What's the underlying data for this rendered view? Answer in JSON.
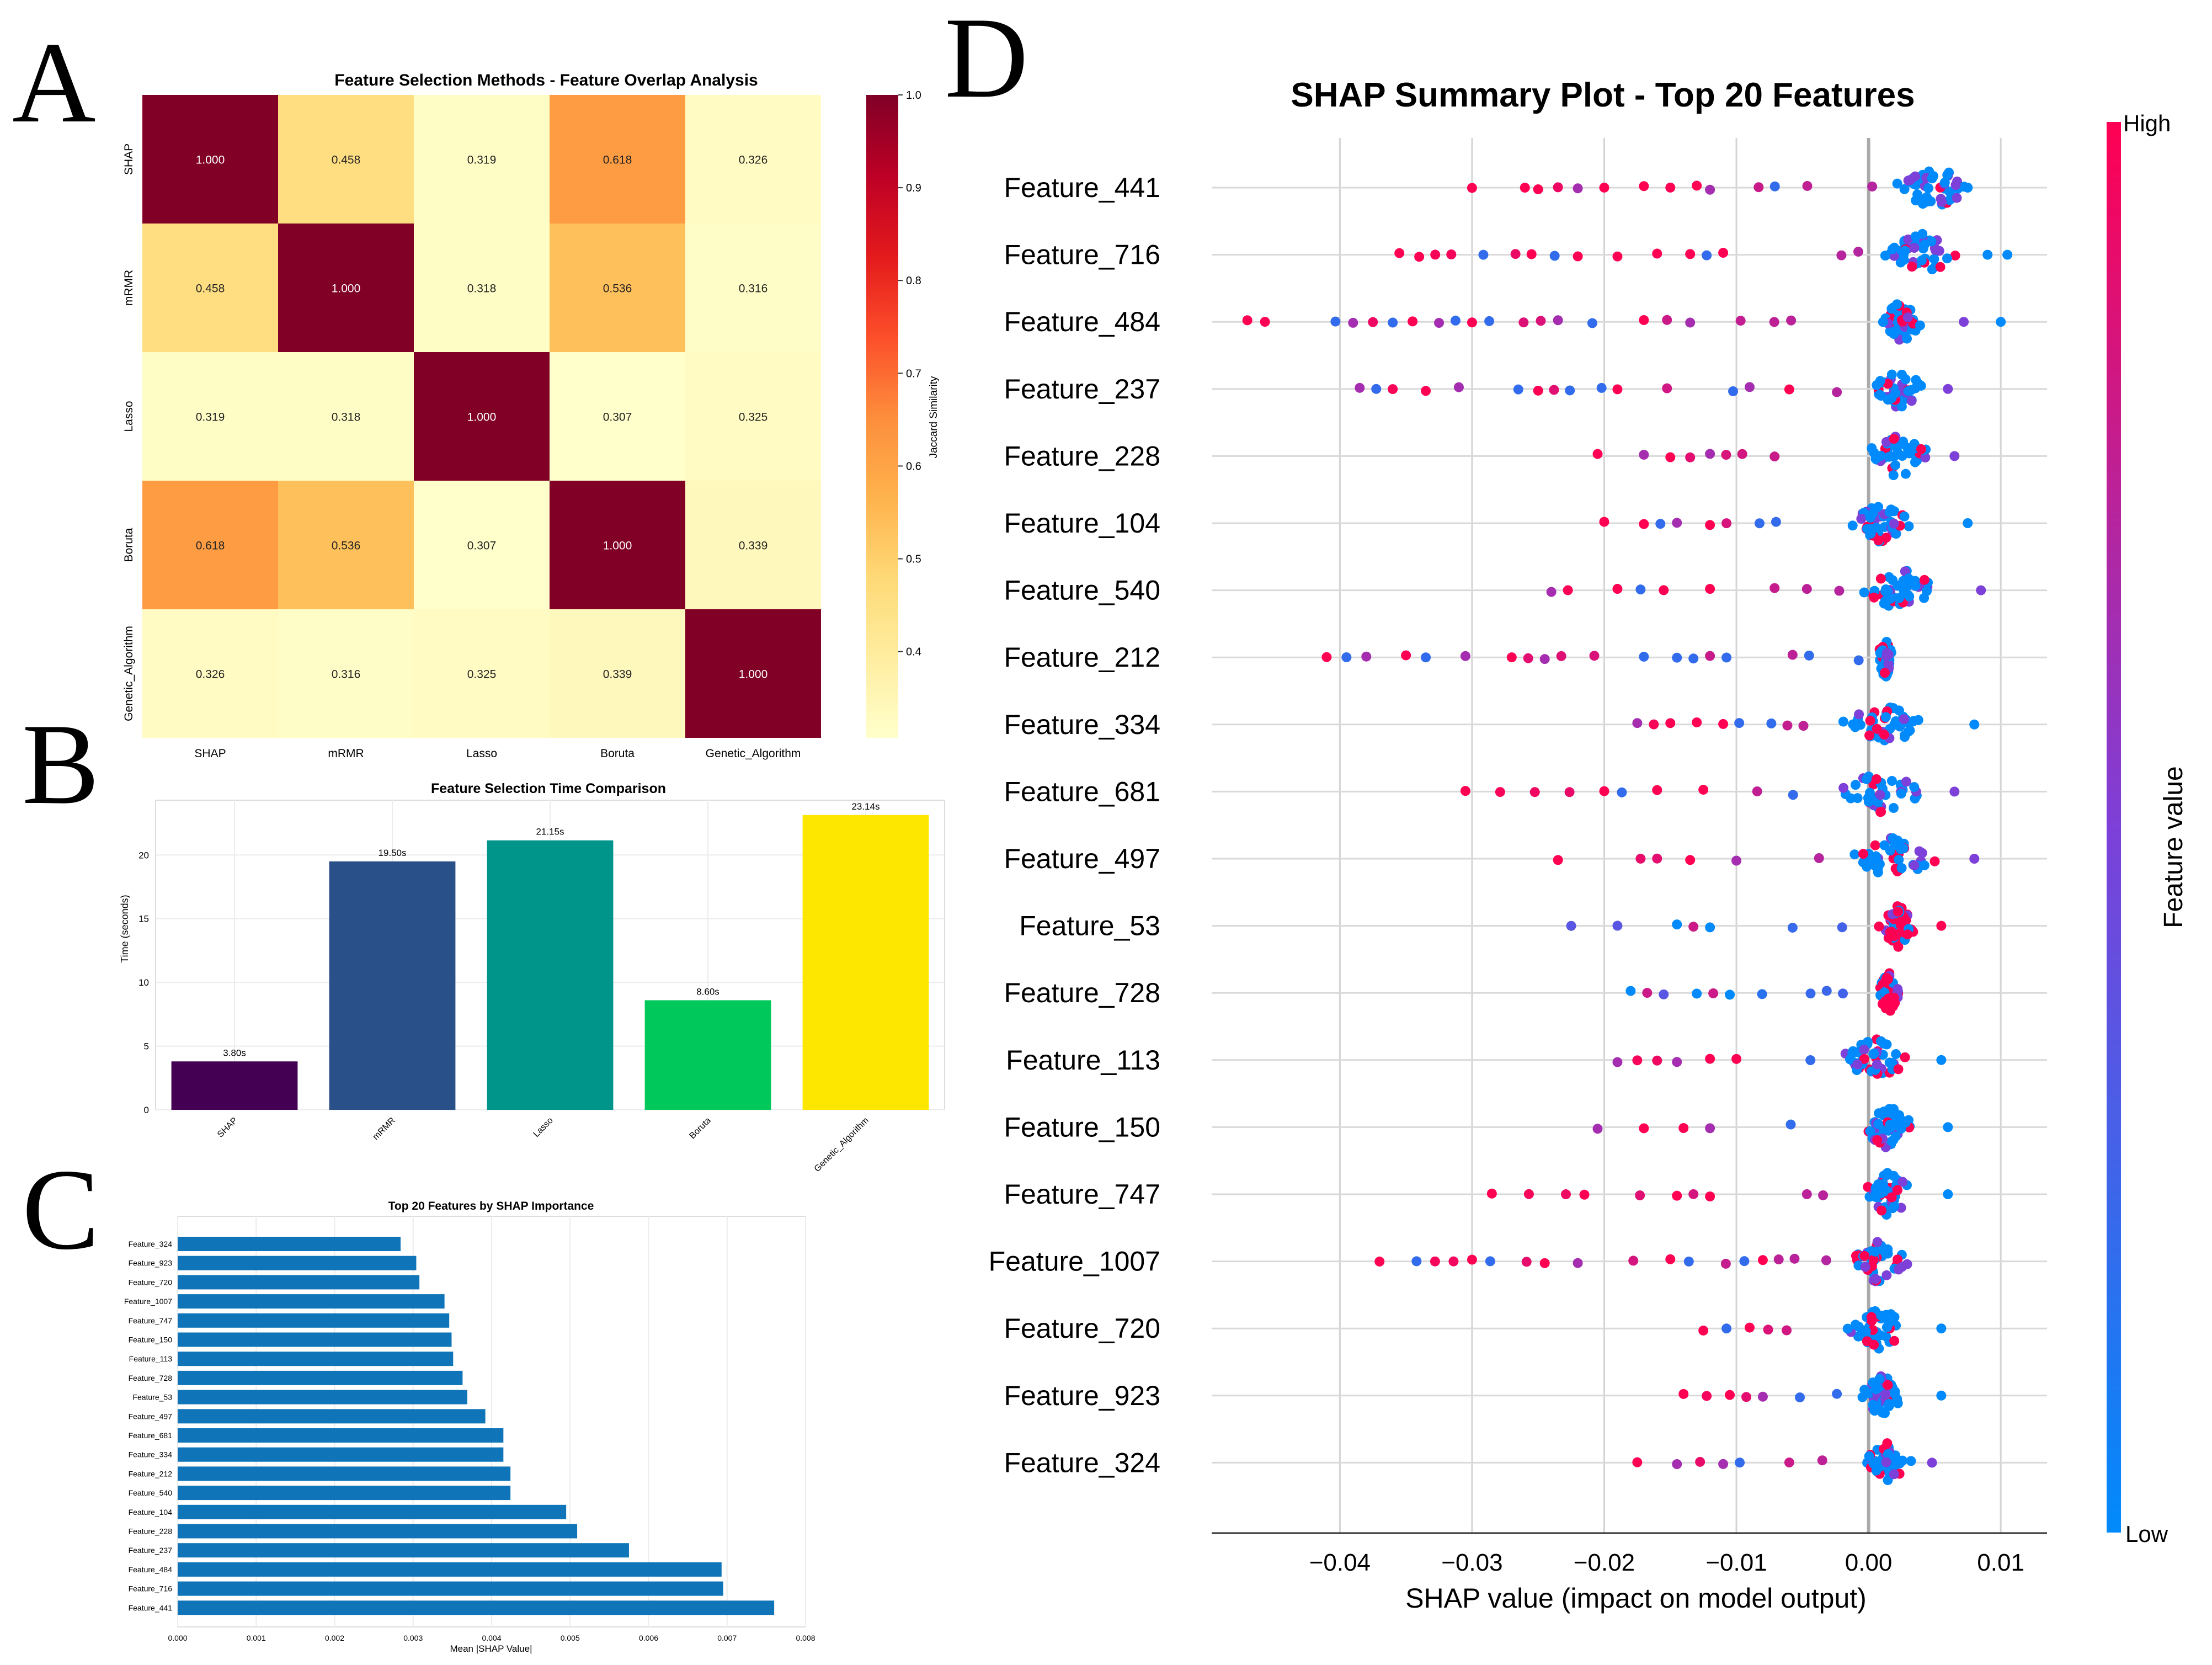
{
  "panels": {
    "a": "A",
    "b": "B",
    "c": "C",
    "d": "D"
  },
  "chart_data": [
    {
      "type": "heatmap",
      "title": "Feature Selection Methods - Feature Overlap Analysis",
      "row_labels": [
        "SHAP",
        "mRMR",
        "Lasso",
        "Boruta",
        "Genetic_Algorithm"
      ],
      "col_labels": [
        "SHAP",
        "mRMR",
        "Lasso",
        "Boruta",
        "Genetic_Algorithm"
      ],
      "values": [
        [
          1.0,
          0.458,
          0.319,
          0.618,
          0.326
        ],
        [
          0.458,
          1.0,
          0.318,
          0.536,
          0.316
        ],
        [
          0.319,
          0.318,
          1.0,
          0.307,
          0.325
        ],
        [
          0.618,
          0.536,
          0.307,
          1.0,
          0.339
        ],
        [
          0.326,
          0.316,
          0.325,
          0.339,
          1.0
        ]
      ],
      "colorbar_label": "Jaccard Similarity",
      "colorbar_range": [
        0.307,
        1.0
      ],
      "colorbar_ticks": [
        0.4,
        0.5,
        0.6,
        0.7,
        0.8,
        0.9,
        1.0
      ],
      "colormap": [
        "#ffffcc",
        "#ffeda0",
        "#fed976",
        "#feb24c",
        "#fd8d3c",
        "#fc4e2a",
        "#e31a1c",
        "#bd0026",
        "#800026"
      ]
    },
    {
      "type": "bar",
      "title": "Feature Selection Time Comparison",
      "categories": [
        "SHAP",
        "mRMR",
        "Lasso",
        "Boruta",
        "Genetic_Algorithm"
      ],
      "values": [
        3.8,
        19.5,
        21.15,
        8.6,
        23.14
      ],
      "value_labels": [
        "3.80s",
        "19.50s",
        "21.15s",
        "8.60s",
        "23.14s"
      ],
      "colors": [
        "#440154",
        "#2a5089",
        "#00958b",
        "#00c85a",
        "#fde600"
      ],
      "ylabel": "Time (seconds)",
      "xlabel": "",
      "ylim": [
        0,
        24.3
      ],
      "yticks": [
        0,
        5,
        10,
        15,
        20
      ]
    },
    {
      "type": "bar",
      "orientation": "horizontal",
      "title": "Top 20 Features by SHAP Importance",
      "categories": [
        "Feature_324",
        "Feature_923",
        "Feature_720",
        "Feature_1007",
        "Feature_747",
        "Feature_150",
        "Feature_113",
        "Feature_728",
        "Feature_53",
        "Feature_497",
        "Feature_681",
        "Feature_334",
        "Feature_212",
        "Feature_540",
        "Feature_104",
        "Feature_228",
        "Feature_237",
        "Feature_484",
        "Feature_716",
        "Feature_441"
      ],
      "values": [
        0.00284,
        0.00304,
        0.00308,
        0.0034,
        0.00346,
        0.00349,
        0.00351,
        0.00363,
        0.00369,
        0.00392,
        0.00415,
        0.00415,
        0.00424,
        0.00424,
        0.00495,
        0.00509,
        0.00575,
        0.00693,
        0.00695,
        0.0076
      ],
      "color": "#0f75b8",
      "xlabel": "Mean |SHAP Value|",
      "ylabel": "",
      "xlim": [
        0,
        0.008
      ],
      "xticks": [
        "0.000",
        "0.001",
        "0.002",
        "0.003",
        "0.004",
        "0.005",
        "0.006",
        "0.007",
        "0.008"
      ]
    },
    {
      "type": "scatter",
      "title": "SHAP Summary Plot - Top 20 Features",
      "features": [
        "Feature_441",
        "Feature_716",
        "Feature_484",
        "Feature_237",
        "Feature_228",
        "Feature_104",
        "Feature_540",
        "Feature_212",
        "Feature_334",
        "Feature_681",
        "Feature_497",
        "Feature_53",
        "Feature_728",
        "Feature_113",
        "Feature_150",
        "Feature_747",
        "Feature_1007",
        "Feature_720",
        "Feature_923",
        "Feature_324"
      ],
      "xlabel": "SHAP value (impact on model output)",
      "xlim": [
        -0.0497,
        0.0135
      ],
      "xticks": [
        -0.04,
        -0.03,
        -0.02,
        -0.01,
        0.0,
        0.01
      ],
      "xtick_labels": [
        "−0.04",
        "−0.03",
        "−0.02",
        "−0.01",
        "0.00",
        "0.01"
      ],
      "colorbar_label": "Feature value",
      "colorbar_high": "High",
      "colorbar_low": "Low",
      "colors": {
        "low": "#008afb",
        "mid": "#7d40d8",
        "high": "#ff0052"
      },
      "series": [
        {
          "name": "Feature_441",
          "extreme_low": [
            -0.03,
            -0.026,
            -0.025,
            -0.022,
            -0.02,
            -0.017,
            -0.015,
            -0.013,
            -0.012
          ],
          "extreme_high": [
            0.0075
          ],
          "core": [
            0.0015,
            0.0085
          ],
          "neg_color": "high",
          "pos_color": "low"
        },
        {
          "name": "Feature_716",
          "extreme_low": [
            -0.0355,
            -0.034,
            -0.0255,
            -0.022,
            -0.019,
            -0.016,
            -0.0135,
            -0.011
          ],
          "extreme_high": [
            0.009,
            0.0105
          ],
          "core": [
            0.0005,
            0.0075
          ],
          "neg_color": "high",
          "pos_color": "low"
        },
        {
          "name": "Feature_484",
          "extreme_low": [
            -0.047,
            -0.039,
            -0.0345,
            -0.0325,
            -0.03,
            -0.0235,
            -0.017,
            -0.0135
          ],
          "extreme_high": [
            0.0072,
            0.01
          ],
          "core": [
            0.0005,
            0.0045
          ],
          "neg_color": "high",
          "pos_color": "low"
        },
        {
          "name": "Feature_237",
          "extreme_low": [
            -0.0385,
            -0.0335,
            -0.031,
            -0.025,
            -0.019,
            -0.009,
            -0.006
          ],
          "extreme_high": [
            0.006
          ],
          "core": [
            0.0,
            0.0045
          ],
          "neg_color": "high",
          "pos_color": "low"
        },
        {
          "name": "Feature_228",
          "extreme_low": [
            -0.0205,
            -0.017,
            -0.015,
            -0.012
          ],
          "extreme_high": [
            0.0065
          ],
          "core": [
            -0.001,
            0.0055
          ],
          "neg_color": "high",
          "pos_color": "low"
        },
        {
          "name": "Feature_104",
          "extreme_low": [
            -0.02,
            -0.017,
            -0.0145,
            -0.012
          ],
          "extreme_high": [
            0.0075
          ],
          "core": [
            -0.002,
            0.004
          ],
          "neg_color": "high",
          "pos_color": "low"
        },
        {
          "name": "Feature_540",
          "extreme_low": [
            -0.024,
            -0.019,
            -0.0155,
            -0.012
          ],
          "extreme_high": [
            0.0085
          ],
          "core": [
            -0.001,
            0.006
          ],
          "neg_color": "high",
          "pos_color": "low"
        },
        {
          "name": "Feature_212",
          "extreme_low": [
            -0.041,
            -0.038,
            -0.035,
            -0.0305,
            -0.027,
            -0.0245
          ],
          "extreme_high": [],
          "core": [
            0.0005,
            0.002
          ],
          "neg_color": "high",
          "pos_color": "low"
        },
        {
          "name": "Feature_334",
          "extreme_low": [
            -0.0175,
            -0.015,
            -0.013,
            -0.011
          ],
          "extreme_high": [
            0.008
          ],
          "core": [
            -0.0025,
            0.005
          ],
          "neg_color": "high",
          "pos_color": "low"
        },
        {
          "name": "Feature_681",
          "extreme_low": [
            -0.0305,
            -0.02,
            -0.016,
            -0.0125
          ],
          "extreme_high": [
            0.0065
          ],
          "core": [
            -0.003,
            0.005
          ],
          "neg_color": "high",
          "pos_color": "low"
        },
        {
          "name": "Feature_497",
          "extreme_low": [
            -0.0235,
            -0.0135,
            -0.01
          ],
          "extreme_high": [
            0.008
          ],
          "core": [
            -0.0025,
            0.006
          ],
          "neg_color": "high",
          "pos_color": "low"
        },
        {
          "name": "Feature_53",
          "extreme_low": [
            -0.0225,
            -0.019,
            -0.0145,
            -0.012
          ],
          "extreme_high": [
            0.0055
          ],
          "core": [
            0.0005,
            0.004
          ],
          "neg_color": "low",
          "pos_color": "high"
        },
        {
          "name": "Feature_728",
          "extreme_low": [
            -0.018,
            -0.0155,
            -0.013,
            -0.0105
          ],
          "extreme_high": [],
          "core": [
            0.0005,
            0.0025
          ],
          "neg_color": "low",
          "pos_color": "high"
        },
        {
          "name": "Feature_113",
          "extreme_low": [
            -0.019,
            -0.0145,
            -0.012,
            -0.01
          ],
          "extreme_high": [
            0.0055
          ],
          "core": [
            -0.003,
            0.004
          ],
          "neg_color": "high",
          "pos_color": "low"
        },
        {
          "name": "Feature_150",
          "extreme_low": [
            -0.0205,
            -0.017,
            -0.014,
            -0.012
          ],
          "extreme_high": [
            0.006
          ],
          "core": [
            -0.001,
            0.004
          ],
          "neg_color": "high",
          "pos_color": "low"
        },
        {
          "name": "Feature_747",
          "extreme_low": [
            -0.0285,
            -0.0215,
            -0.0145,
            -0.012
          ],
          "extreme_high": [
            0.006
          ],
          "core": [
            -0.001,
            0.004
          ],
          "neg_color": "high",
          "pos_color": "low"
        },
        {
          "name": "Feature_1007",
          "extreme_low": [
            -0.037,
            -0.03,
            -0.0245,
            -0.022,
            -0.015,
            -0.008
          ],
          "extreme_high": [],
          "core": [
            -0.002,
            0.0035
          ],
          "neg_color": "high",
          "pos_color": "low"
        },
        {
          "name": "Feature_720",
          "extreme_low": [
            -0.0125,
            -0.009
          ],
          "extreme_high": [
            0.0055
          ],
          "core": [
            -0.002,
            0.0035
          ],
          "neg_color": "high",
          "pos_color": "low"
        },
        {
          "name": "Feature_923",
          "extreme_low": [
            -0.014,
            -0.0105,
            -0.008
          ],
          "extreme_high": [
            0.0055
          ],
          "core": [
            -0.001,
            0.003
          ],
          "neg_color": "high",
          "pos_color": "low"
        },
        {
          "name": "Feature_324",
          "extreme_low": [
            -0.0175,
            -0.0145,
            -0.011
          ],
          "extreme_high": [
            0.0048
          ],
          "core": [
            -0.001,
            0.0035
          ],
          "neg_color": "high",
          "pos_color": "low"
        }
      ]
    }
  ]
}
